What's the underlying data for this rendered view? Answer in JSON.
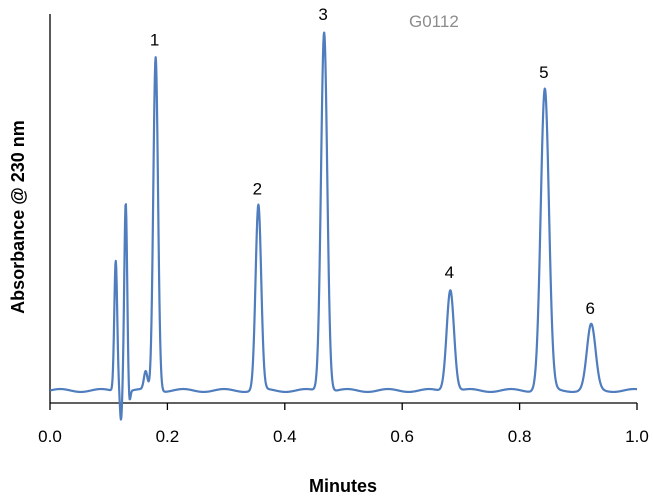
{
  "chart_data": {
    "type": "line",
    "sample_id": "G0112",
    "xlabel": "Minutes",
    "ylabel": "Absorbance @ 230 nm",
    "xlim": [
      0.0,
      1.0
    ],
    "ylim": [
      0,
      100
    ],
    "x_ticks": [
      "0.0",
      "0.2",
      "0.4",
      "0.6",
      "0.8",
      "1.0"
    ],
    "y_ticks_shown": false,
    "grid": false,
    "line_color": "#4f7dbd",
    "baseline": 4,
    "system_peaks": [
      {
        "x": 0.112,
        "height": 36,
        "width": 0.0025
      },
      {
        "x": 0.129,
        "height": 52,
        "width": 0.0025
      },
      {
        "x": 0.163,
        "height": 5,
        "width": 0.003
      }
    ],
    "system_dips": [
      {
        "x": 0.121,
        "depth": 8
      },
      {
        "x": 0.135,
        "depth": 4
      }
    ],
    "peaks": [
      {
        "label": "1",
        "x": 0.18,
        "height": 92
      },
      {
        "label": "2",
        "x": 0.355,
        "height": 51
      },
      {
        "label": "3",
        "x": 0.467,
        "height": 99
      },
      {
        "label": "4",
        "x": 0.682,
        "height": 28
      },
      {
        "label": "5",
        "x": 0.843,
        "height": 83
      },
      {
        "label": "6",
        "x": 0.922,
        "height": 18
      }
    ]
  }
}
